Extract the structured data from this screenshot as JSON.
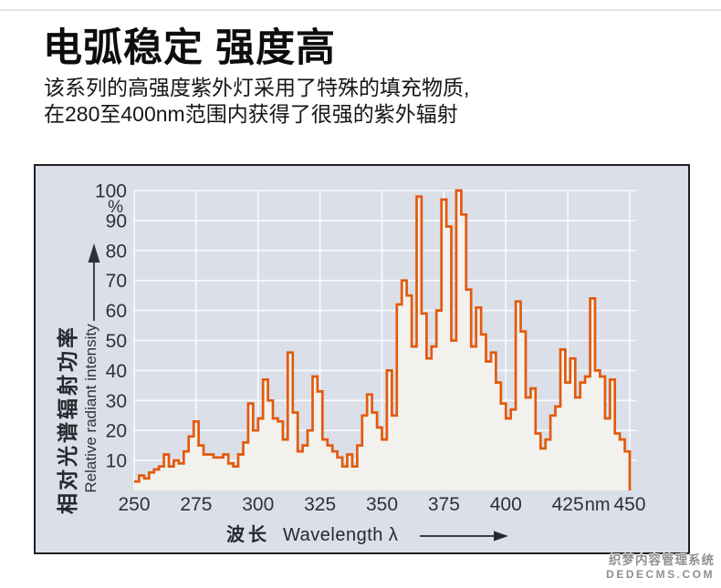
{
  "header": {
    "title": "电弧稳定 强度高",
    "subtitle_line1": "该系列的高强度紫外灯采用了特殊的填充物质,",
    "subtitle_line2": "在280至400nm范围内获得了很强的紫外辐射"
  },
  "watermark": {
    "line1": "织梦内容管理系统",
    "line2": "DEDECMS.COM"
  },
  "chart_data": {
    "type": "area",
    "subtype": "stepped-spectrum",
    "description": "Relative spectral radiant intensity of high-intensity UV lamp, 250-450 nm",
    "x_start": 250,
    "x_bin_width": 2,
    "values": [
      3,
      5,
      4,
      6,
      7,
      8,
      12,
      8,
      10,
      9,
      13,
      18,
      23,
      15,
      12,
      12,
      11,
      11,
      12,
      9,
      8,
      12,
      16,
      29,
      20,
      24,
      37,
      30,
      24,
      23,
      17,
      46,
      26,
      13,
      15,
      20,
      38,
      33,
      17,
      15,
      13,
      11,
      8,
      12,
      8,
      15,
      25,
      32,
      26,
      21,
      17,
      40,
      25,
      62,
      70,
      65,
      48,
      98,
      59,
      44,
      48,
      60,
      97,
      88,
      50,
      100,
      92,
      67,
      48,
      61,
      52,
      43,
      46,
      36,
      29,
      24,
      27,
      63,
      53,
      31,
      34,
      19,
      14,
      17,
      25,
      28,
      47,
      36,
      44,
      31,
      36,
      38,
      64,
      40,
      38,
      24,
      37,
      19,
      17,
      13
    ],
    "x_ticks": [
      250,
      275,
      300,
      325,
      350,
      375,
      400,
      425,
      450
    ],
    "x_unit_label": "nm",
    "y_ticks": [
      10,
      20,
      30,
      40,
      50,
      60,
      70,
      80,
      90,
      100
    ],
    "y_unit_label": "%",
    "ylabel_cn": "相对光谱辐射功率",
    "ylabel_en": "Relative radiant intensity",
    "xlabel_cn": "波长",
    "xlabel_en": "Wavelength λ",
    "xlim": [
      250,
      450
    ],
    "ylim": [
      0,
      100
    ],
    "grid": "on",
    "legend_position": "none",
    "colors": {
      "line": "#e25a0c",
      "area_fill": "#f2f1ed",
      "panel_bg": "#dbdfe8",
      "grid": "#fafbfd",
      "axis_text": "#2e3238",
      "panel_border": "#202022"
    }
  }
}
